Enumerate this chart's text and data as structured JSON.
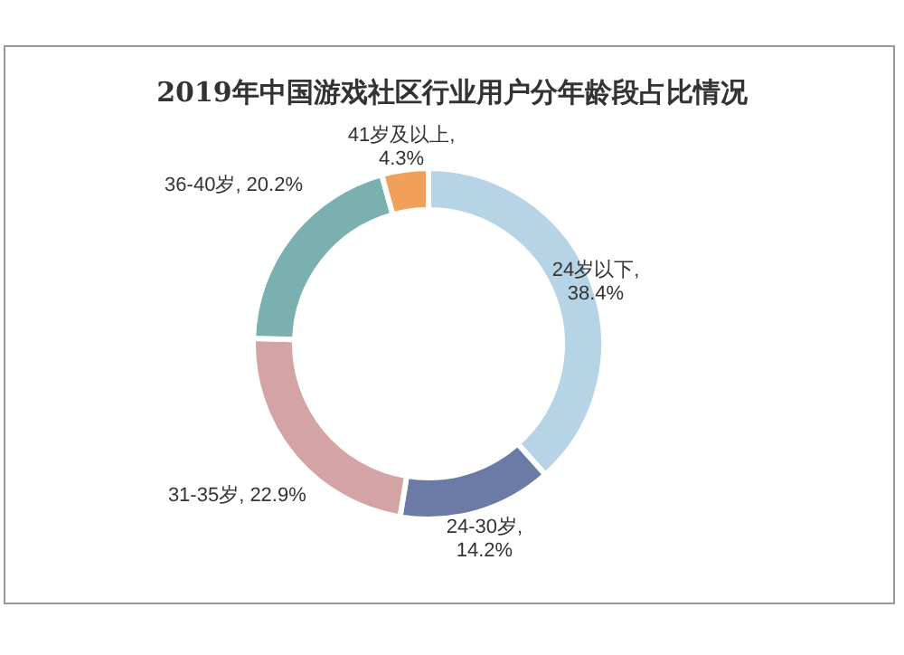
{
  "chart_data": {
    "type": "donut",
    "title": "2019年中国游戏社区行业用户分年龄段占比情况",
    "categories": [
      "24岁以下",
      "24-30岁",
      "31-35岁",
      "36-40岁",
      "41岁及以上"
    ],
    "values": [
      38.4,
      14.2,
      22.9,
      20.2,
      4.3
    ],
    "colors": [
      "#b7d4e6",
      "#6c7ba6",
      "#d4a3a3",
      "#7ab0b0",
      "#f0a05a"
    ],
    "value_labels": [
      ", 38.4%",
      ", 14.2%",
      ", 22.9%",
      ", 20.2%",
      ", 4.3%"
    ],
    "legend": false
  }
}
